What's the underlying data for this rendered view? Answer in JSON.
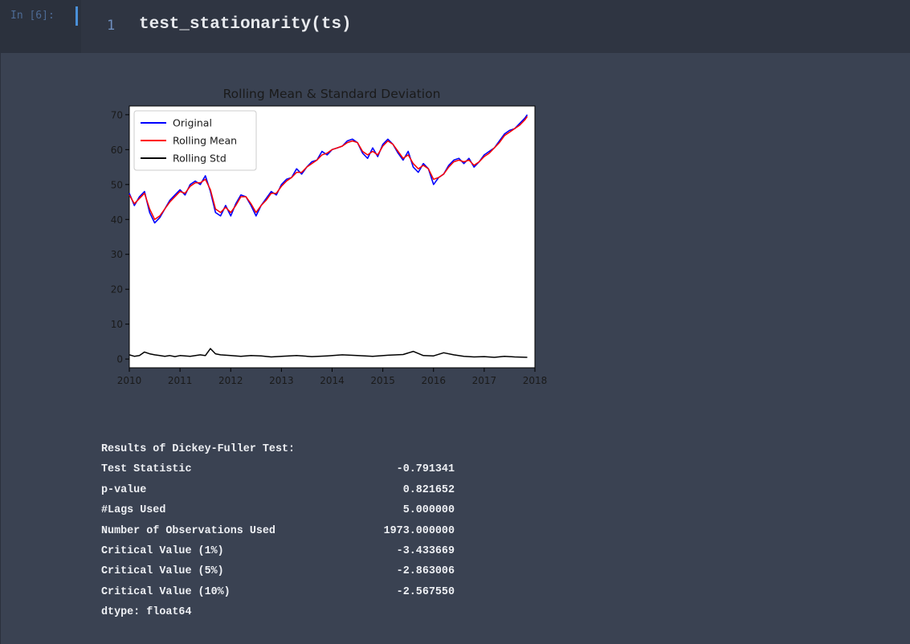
{
  "cell": {
    "prompt": "In [6]:",
    "line_number": "1",
    "code": "test_stationarity(ts)"
  },
  "chart_data": {
    "type": "line",
    "title": "Rolling Mean & Standard Deviation",
    "xlabel": "",
    "ylabel": "",
    "xlim": [
      2010,
      2018
    ],
    "ylim": [
      -2.5,
      72.5
    ],
    "x_ticks": [
      "2010",
      "2011",
      "2012",
      "2013",
      "2014",
      "2015",
      "2016",
      "2017",
      "2018"
    ],
    "y_ticks": [
      "0",
      "10",
      "20",
      "30",
      "40",
      "50",
      "60",
      "70"
    ],
    "grid": false,
    "legend_position": "top-left",
    "series": [
      {
        "name": "Original",
        "color": "#0000ff",
        "x": [
          2010.0,
          2010.1,
          2010.2,
          2010.3,
          2010.4,
          2010.5,
          2010.6,
          2010.7,
          2010.8,
          2010.9,
          2011.0,
          2011.1,
          2011.2,
          2011.3,
          2011.4,
          2011.5,
          2011.6,
          2011.7,
          2011.8,
          2011.9,
          2012.0,
          2012.1,
          2012.2,
          2012.3,
          2012.4,
          2012.5,
          2012.6,
          2012.7,
          2012.8,
          2012.9,
          2013.0,
          2013.1,
          2013.2,
          2013.3,
          2013.4,
          2013.5,
          2013.6,
          2013.7,
          2013.8,
          2013.9,
          2014.0,
          2014.1,
          2014.2,
          2014.3,
          2014.4,
          2014.5,
          2014.6,
          2014.7,
          2014.8,
          2014.9,
          2015.0,
          2015.1,
          2015.2,
          2015.3,
          2015.4,
          2015.5,
          2015.6,
          2015.7,
          2015.8,
          2015.9,
          2016.0,
          2016.1,
          2016.2,
          2016.3,
          2016.4,
          2016.5,
          2016.6,
          2016.7,
          2016.8,
          2016.9,
          2017.0,
          2017.1,
          2017.2,
          2017.3,
          2017.4,
          2017.5,
          2017.6,
          2017.7,
          2017.8,
          2017.85
        ],
        "values": [
          47.5,
          44.0,
          46.5,
          48.0,
          42.0,
          39.0,
          40.5,
          43.0,
          45.5,
          47.0,
          48.5,
          47.0,
          50.0,
          51.0,
          50.0,
          52.5,
          48.0,
          42.0,
          41.0,
          44.0,
          41.0,
          44.5,
          47.0,
          46.5,
          44.0,
          41.0,
          44.0,
          46.0,
          48.0,
          47.0,
          50.0,
          51.5,
          52.0,
          54.5,
          53.0,
          55.0,
          56.5,
          57.0,
          59.5,
          58.5,
          60.0,
          60.5,
          61.0,
          62.5,
          63.0,
          62.0,
          59.0,
          57.5,
          60.5,
          58.0,
          61.5,
          63.0,
          61.5,
          59.0,
          57.0,
          59.5,
          55.0,
          53.5,
          56.0,
          54.5,
          50.0,
          52.0,
          53.0,
          55.5,
          57.0,
          57.5,
          56.0,
          57.5,
          55.0,
          56.5,
          58.5,
          59.5,
          60.5,
          62.5,
          64.5,
          65.5,
          66.0,
          67.5,
          69.0,
          70.0
        ]
      },
      {
        "name": "Rolling Mean",
        "color": "#ff0000",
        "x": [
          2010.0,
          2010.1,
          2010.2,
          2010.3,
          2010.4,
          2010.5,
          2010.6,
          2010.7,
          2010.8,
          2010.9,
          2011.0,
          2011.1,
          2011.2,
          2011.3,
          2011.4,
          2011.5,
          2011.6,
          2011.7,
          2011.8,
          2011.9,
          2012.0,
          2012.1,
          2012.2,
          2012.3,
          2012.4,
          2012.5,
          2012.6,
          2012.7,
          2012.8,
          2012.9,
          2013.0,
          2013.1,
          2013.2,
          2013.3,
          2013.4,
          2013.5,
          2013.6,
          2013.7,
          2013.8,
          2013.9,
          2014.0,
          2014.1,
          2014.2,
          2014.3,
          2014.4,
          2014.5,
          2014.6,
          2014.7,
          2014.8,
          2014.9,
          2015.0,
          2015.1,
          2015.2,
          2015.3,
          2015.4,
          2015.5,
          2015.6,
          2015.7,
          2015.8,
          2015.9,
          2016.0,
          2016.1,
          2016.2,
          2016.3,
          2016.4,
          2016.5,
          2016.6,
          2016.7,
          2016.8,
          2016.9,
          2017.0,
          2017.1,
          2017.2,
          2017.3,
          2017.4,
          2017.5,
          2017.6,
          2017.7,
          2017.8,
          2017.85
        ],
        "values": [
          47.0,
          44.5,
          46.0,
          47.5,
          43.0,
          40.0,
          41.0,
          43.0,
          45.0,
          46.5,
          48.0,
          47.5,
          49.5,
          50.5,
          50.5,
          51.5,
          48.5,
          43.0,
          42.0,
          43.5,
          42.0,
          44.0,
          46.5,
          46.5,
          44.5,
          42.0,
          44.0,
          45.5,
          47.5,
          47.5,
          49.5,
          51.0,
          52.0,
          53.5,
          53.5,
          55.0,
          56.0,
          57.0,
          58.5,
          59.0,
          60.0,
          60.5,
          61.0,
          62.0,
          62.5,
          62.0,
          59.5,
          58.5,
          59.5,
          58.5,
          61.0,
          62.5,
          61.5,
          59.5,
          57.5,
          58.5,
          56.0,
          54.5,
          55.5,
          54.5,
          51.5,
          52.0,
          53.0,
          55.0,
          56.5,
          57.0,
          56.5,
          57.0,
          55.5,
          56.5,
          58.0,
          59.0,
          60.5,
          62.0,
          64.0,
          65.0,
          66.0,
          67.0,
          68.5,
          69.5
        ]
      },
      {
        "name": "Rolling Std",
        "color": "#000000",
        "x": [
          2010.0,
          2010.1,
          2010.2,
          2010.3,
          2010.4,
          2010.5,
          2010.6,
          2010.7,
          2010.8,
          2010.9,
          2011.0,
          2011.2,
          2011.4,
          2011.5,
          2011.6,
          2011.7,
          2011.8,
          2012.0,
          2012.2,
          2012.4,
          2012.6,
          2012.8,
          2013.0,
          2013.3,
          2013.6,
          2013.9,
          2014.2,
          2014.5,
          2014.8,
          2015.1,
          2015.4,
          2015.6,
          2015.8,
          2016.0,
          2016.2,
          2016.4,
          2016.6,
          2016.8,
          2017.0,
          2017.2,
          2017.4,
          2017.6,
          2017.85
        ],
        "values": [
          1.2,
          0.8,
          1.0,
          2.0,
          1.5,
          1.2,
          1.0,
          0.8,
          1.0,
          0.7,
          1.0,
          0.8,
          1.2,
          1.0,
          3.0,
          1.5,
          1.2,
          1.0,
          0.8,
          1.0,
          0.9,
          0.6,
          0.8,
          1.0,
          0.7,
          0.9,
          1.2,
          1.0,
          0.8,
          1.1,
          1.3,
          2.2,
          1.0,
          0.9,
          1.8,
          1.2,
          0.8,
          0.6,
          0.7,
          0.5,
          0.8,
          0.6,
          0.5
        ]
      }
    ]
  },
  "df_test": {
    "heading": "Results of Dickey-Fuller Test:",
    "rows": [
      {
        "label": "Test Statistic",
        "value": "-0.791341"
      },
      {
        "label": "p-value",
        "value": "0.821652"
      },
      {
        "label": "#Lags Used",
        "value": "5.000000"
      },
      {
        "label": "Number of Observations Used",
        "value": "1973.000000"
      },
      {
        "label": "Critical Value (1%)",
        "value": "-3.433669"
      },
      {
        "label": "Critical Value (5%)",
        "value": "-2.863006"
      },
      {
        "label": "Critical Value (10%)",
        "value": "-2.567550"
      }
    ],
    "dtype_line": "dtype: float64"
  }
}
